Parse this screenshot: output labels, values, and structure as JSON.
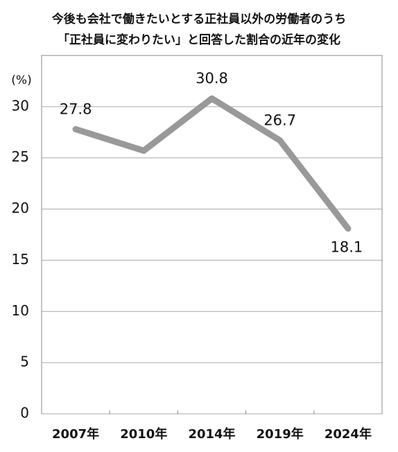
{
  "chart_data": {
    "type": "line",
    "title": [
      "今後も会社で働きたいとする正社員以外の労働者のうち",
      "「正社員に変わりたい」と回答した割合の近年の変化"
    ],
    "y_label": "(%)",
    "categories": [
      "2007年",
      "2010年",
      "2014年",
      "2019年",
      "2024年"
    ],
    "values": [
      27.8,
      25.7,
      30.8,
      26.7,
      18.1
    ],
    "value_labels": [
      "27.8",
      null,
      "30.8",
      "26.7",
      "18.1"
    ],
    "color": "#999999",
    "ylim": [
      0,
      35
    ],
    "yticks": [
      0,
      5,
      10,
      15,
      20,
      25,
      30
    ],
    "grid": true
  }
}
